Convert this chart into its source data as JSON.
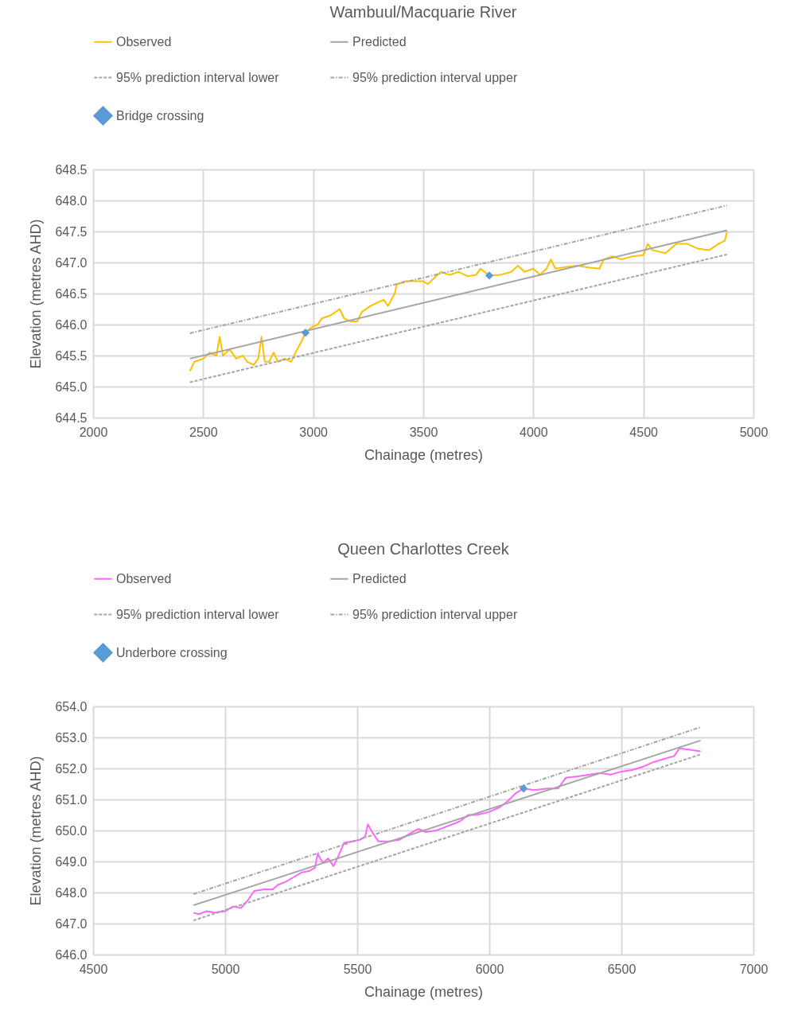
{
  "chart_data": [
    {
      "type": "line",
      "title": "Wambuul/Macquarie River",
      "xlabel": "Chainage (metres)",
      "ylabel": "Elevation (metres AHD)",
      "xlim": [
        2000,
        5000
      ],
      "xticks": [
        2000,
        2500,
        3000,
        3500,
        4000,
        4500,
        5000
      ],
      "ylim": [
        644.5,
        648.5
      ],
      "yticks": [
        644.5,
        {
          "value": 645,
          "label": "645.0"
        },
        645.5,
        {
          "value": 646,
          "label": "646.0"
        },
        646.5,
        {
          "value": 647,
          "label": "647.0"
        },
        647.5,
        {
          "value": 648,
          "label": "648.0"
        },
        648.5
      ],
      "grid": true,
      "legend": "top",
      "series": [
        {
          "name": "Observed",
          "color": "#ffc000",
          "x": [
            2440,
            2460,
            2500,
            2530,
            2560,
            2575,
            2590,
            2620,
            2650,
            2680,
            2700,
            2730,
            2750,
            2765,
            2780,
            2800,
            2820,
            2840,
            2870,
            2900,
            2920,
            2950,
            2965,
            2990,
            3020,
            3040,
            3080,
            3120,
            3140,
            3170,
            3200,
            3220,
            3260,
            3290,
            3320,
            3340,
            3370,
            3380,
            3420,
            3470,
            3500,
            3520,
            3550,
            3580,
            3620,
            3660,
            3700,
            3740,
            3760,
            3800,
            3850,
            3900,
            3930,
            3960,
            4000,
            4030,
            4060,
            4080,
            4100,
            4150,
            4200,
            4250,
            4300,
            4320,
            4360,
            4400,
            4450,
            4500,
            4520,
            4540,
            4600,
            4650,
            4700,
            4750,
            4800,
            4840,
            4870,
            4880
          ],
          "values": [
            645.25,
            645.4,
            645.45,
            645.55,
            645.5,
            645.8,
            645.5,
            645.6,
            645.45,
            645.5,
            645.4,
            645.35,
            645.45,
            645.8,
            645.4,
            645.4,
            645.55,
            645.4,
            645.45,
            645.4,
            645.55,
            645.75,
            645.87,
            645.95,
            646.0,
            646.1,
            646.15,
            646.25,
            646.1,
            646.05,
            646.05,
            646.2,
            646.3,
            646.35,
            646.4,
            646.3,
            646.5,
            646.65,
            646.7,
            646.7,
            646.7,
            646.65,
            646.75,
            646.85,
            646.8,
            646.85,
            646.78,
            646.8,
            646.9,
            646.79,
            646.8,
            646.85,
            646.95,
            646.85,
            646.9,
            646.8,
            646.9,
            647.05,
            646.9,
            646.93,
            646.95,
            646.92,
            646.9,
            647.05,
            647.1,
            647.05,
            647.1,
            647.12,
            647.3,
            647.2,
            647.15,
            647.3,
            647.3,
            647.22,
            647.2,
            647.3,
            647.35,
            647.5
          ]
        },
        {
          "name": "Predicted",
          "color": "#a5a5a5",
          "x": [
            2440,
            4880
          ],
          "values": [
            645.45,
            647.52
          ]
        },
        {
          "name": "95% prediction interval lower",
          "color": "#a5a5a5",
          "line_style": "dashed",
          "x": [
            2440,
            4880
          ],
          "values": [
            645.07,
            647.13
          ]
        },
        {
          "name": "95% prediction interval upper",
          "color": "#a5a5a5",
          "line_style": "dotted",
          "x": [
            2440,
            4880
          ],
          "values": [
            645.86,
            647.92
          ]
        },
        {
          "name": "Bridge crossing",
          "type": "scatter",
          "marker": "diamond",
          "color": "#5b9bd5",
          "x": [
            2965,
            3800
          ],
          "values": [
            645.87,
            646.79
          ]
        }
      ]
    },
    {
      "type": "line",
      "title": "Queen Charlottes Creek",
      "xlabel": "Chainage (metres)",
      "ylabel": "Elevation (metres AHD)",
      "xlim": [
        4500,
        7000
      ],
      "xticks": [
        4500,
        5000,
        5500,
        6000,
        6500,
        7000
      ],
      "ylim": [
        646,
        654
      ],
      "yticks": [
        {
          "value": 646,
          "label": "646.0"
        },
        {
          "value": 647,
          "label": "647.0"
        },
        {
          "value": 648,
          "label": "648.0"
        },
        {
          "value": 649,
          "label": "649.0"
        },
        {
          "value": 650,
          "label": "650.0"
        },
        {
          "value": 651,
          "label": "651.0"
        },
        {
          "value": 652,
          "label": "652.0"
        },
        {
          "value": 653,
          "label": "653.0"
        },
        {
          "value": 654,
          "label": "654.0"
        }
      ],
      "grid": true,
      "legend": "top",
      "series": [
        {
          "name": "Observed",
          "color": "#ff66ff",
          "x": [
            4880,
            4900,
            4930,
            4960,
            5000,
            5030,
            5060,
            5090,
            5110,
            5150,
            5180,
            5200,
            5230,
            5260,
            5290,
            5320,
            5340,
            5350,
            5370,
            5390,
            5410,
            5430,
            5450,
            5480,
            5510,
            5530,
            5540,
            5560,
            5580,
            5620,
            5660,
            5700,
            5730,
            5760,
            5800,
            5830,
            5860,
            5890,
            5920,
            5950,
            6000,
            6040,
            6070,
            6100,
            6130,
            6170,
            6220,
            6260,
            6290,
            6340,
            6380,
            6420,
            6460,
            6500,
            6540,
            6580,
            6620,
            6660,
            6700,
            6720,
            6760,
            6800
          ],
          "values": [
            647.35,
            647.3,
            647.4,
            647.35,
            647.4,
            647.55,
            647.5,
            647.8,
            648.05,
            648.1,
            648.1,
            648.25,
            648.35,
            648.5,
            648.65,
            648.7,
            648.8,
            649.25,
            648.95,
            649.1,
            648.85,
            649.2,
            649.6,
            649.65,
            649.7,
            649.8,
            650.2,
            649.9,
            649.65,
            649.65,
            649.7,
            649.9,
            650.05,
            649.95,
            650.0,
            650.1,
            650.2,
            650.3,
            650.5,
            650.5,
            650.6,
            650.75,
            650.95,
            651.2,
            651.35,
            651.3,
            651.35,
            651.35,
            651.7,
            651.75,
            651.8,
            651.85,
            651.8,
            651.9,
            651.95,
            652.05,
            652.2,
            652.3,
            652.4,
            652.65,
            652.6,
            652.55
          ]
        },
        {
          "name": "Predicted",
          "color": "#a5a5a5",
          "x": [
            4880,
            6800
          ],
          "values": [
            647.59,
            652.9
          ]
        },
        {
          "name": "95% prediction interval lower",
          "color": "#a5a5a5",
          "line_style": "dashed",
          "x": [
            4880,
            6800
          ],
          "values": [
            647.1,
            652.45
          ]
        },
        {
          "name": "95% prediction interval upper",
          "color": "#a5a5a5",
          "line_style": "dotted",
          "x": [
            4880,
            6800
          ],
          "values": [
            647.95,
            653.33
          ]
        },
        {
          "name": "Underbore crossing",
          "type": "scatter",
          "marker": "diamond",
          "color": "#5b9bd5",
          "x": [
            6130
          ],
          "values": [
            651.35
          ]
        }
      ]
    }
  ]
}
